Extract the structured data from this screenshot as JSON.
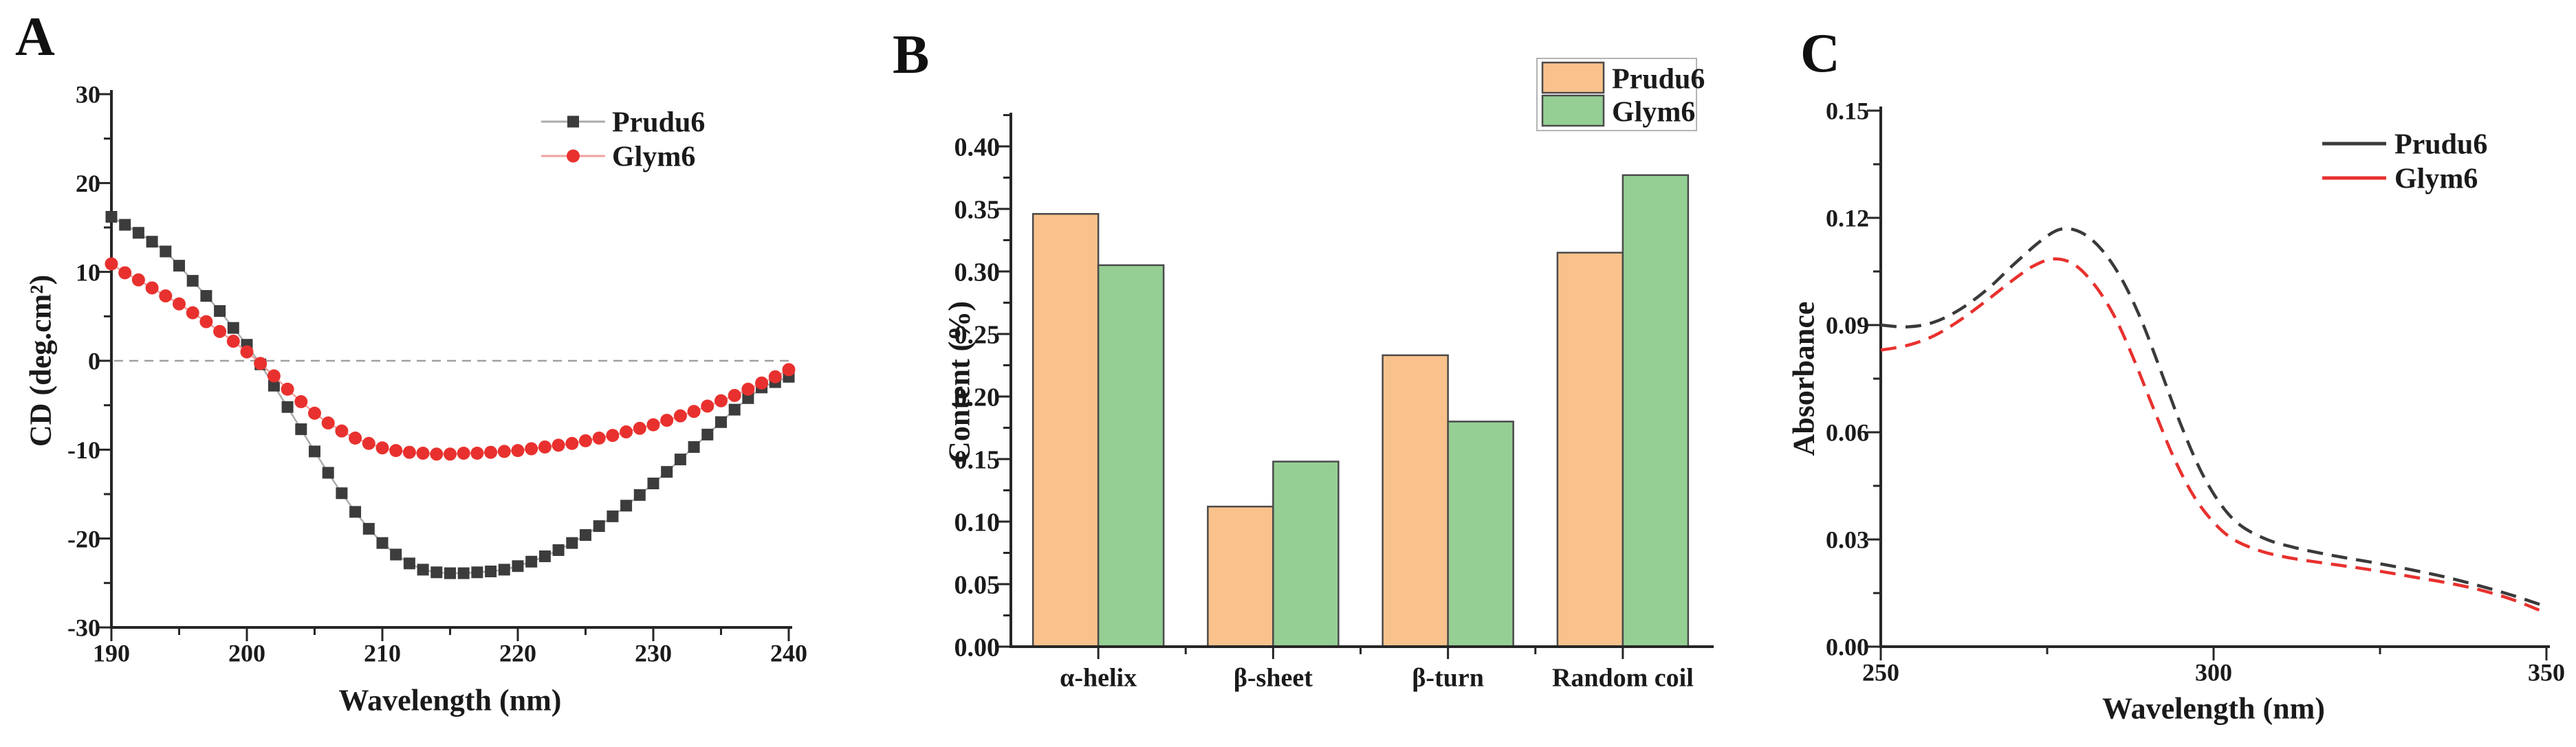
{
  "colors": {
    "text": "#1a1a1a",
    "axis": "#262626",
    "prudu6_marker": "#3c3c3c",
    "prudu6_line": "#ababab",
    "glym6_marker": "#e8312e",
    "glym6_line": "#f2a19e",
    "zero_line": "#a0a0a0",
    "bar_orange_fill": "#f9c28c",
    "bar_green_fill": "#95cf94",
    "bar_edge": "#4a4a4a",
    "dash_black": "#3a3a3a",
    "dash_red": "#e8312e",
    "legend_box_border": "#b4b4b4",
    "legend_box_fill": "#ffffff"
  },
  "chart_data": [
    {
      "id": "cd-spectra",
      "panel_label": "A",
      "type": "line",
      "title": "",
      "xlabel": "Wavelength (nm)",
      "ylabel": "CD (deg.cm²)",
      "xlim": [
        190,
        240
      ],
      "ylim": [
        -30,
        30
      ],
      "xticks": [
        190,
        200,
        210,
        220,
        230,
        240
      ],
      "xtick_labels": [
        "190",
        "200",
        "210",
        "220",
        "230",
        "240"
      ],
      "yticks": [
        30,
        20,
        10,
        0,
        -10,
        -20,
        -30
      ],
      "ytick_labels": [
        "30",
        "20",
        "10",
        "0",
        "-10",
        "-20",
        "-30"
      ],
      "minor_xticks": [
        195,
        205,
        215,
        225,
        235
      ],
      "minor_yticks": [
        25,
        15,
        5,
        -5,
        -15,
        -25
      ],
      "grid": false,
      "zero_line": true,
      "legend_position": "top-right-inside",
      "series": [
        {
          "name": "Prudu6",
          "marker": "square",
          "x_start": 190,
          "x_step": 1,
          "values": [
            16.2,
            15.3,
            14.4,
            13.4,
            12.3,
            10.7,
            9.0,
            7.3,
            5.6,
            3.7,
            1.8,
            -0.4,
            -2.8,
            -5.2,
            -7.7,
            -10.2,
            -12.6,
            -14.9,
            -17.0,
            -18.9,
            -20.5,
            -21.8,
            -22.8,
            -23.5,
            -23.8,
            -23.9,
            -23.9,
            -23.8,
            -23.7,
            -23.5,
            -23.1,
            -22.6,
            -22.0,
            -21.3,
            -20.5,
            -19.6,
            -18.6,
            -17.5,
            -16.3,
            -15.1,
            -13.8,
            -12.5,
            -11.1,
            -9.7,
            -8.3,
            -6.9,
            -5.5,
            -4.2,
            -3.0,
            -2.4,
            -1.8
          ]
        },
        {
          "name": "Glym6",
          "marker": "circle",
          "x_start": 190,
          "x_step": 1,
          "values": [
            10.9,
            9.9,
            9.1,
            8.2,
            7.3,
            6.4,
            5.4,
            4.4,
            3.3,
            2.2,
            1.0,
            -0.3,
            -1.7,
            -3.2,
            -4.6,
            -5.9,
            -7.0,
            -7.9,
            -8.7,
            -9.3,
            -9.8,
            -10.1,
            -10.3,
            -10.4,
            -10.5,
            -10.5,
            -10.4,
            -10.4,
            -10.3,
            -10.2,
            -10.1,
            -9.9,
            -9.7,
            -9.5,
            -9.3,
            -9.0,
            -8.7,
            -8.4,
            -8.0,
            -7.6,
            -7.2,
            -6.7,
            -6.2,
            -5.7,
            -5.1,
            -4.5,
            -3.9,
            -3.2,
            -2.5,
            -1.8,
            -1.0
          ]
        }
      ]
    },
    {
      "id": "secondary-structure-content",
      "panel_label": "B",
      "type": "bar",
      "title": "",
      "xlabel": "",
      "ylabel": "Content (%)",
      "categories": [
        "α-helix",
        "β-sheet",
        "β-turn",
        "Random coil"
      ],
      "ylim": [
        0,
        0.4236
      ],
      "yticks": [
        0.0,
        0.05,
        0.1,
        0.15,
        0.2,
        0.25,
        0.3,
        0.35,
        0.4
      ],
      "ytick_labels": [
        "0.00",
        "0.05",
        "0.10",
        "0.15",
        "0.20",
        "0.25",
        "0.30",
        "0.35",
        "0.40"
      ],
      "minor_ytick_step": 0.025,
      "grid": false,
      "legend_position": "top-right",
      "series": [
        {
          "name": "Prudu6",
          "values": [
            0.346,
            0.112,
            0.233,
            0.315
          ]
        },
        {
          "name": "Glym6",
          "values": [
            0.305,
            0.148,
            0.18,
            0.377
          ]
        }
      ]
    },
    {
      "id": "uv-absorbance",
      "panel_label": "C",
      "type": "line",
      "title": "",
      "xlabel": "Wavelength (nm)",
      "ylabel": "Absorbance",
      "xlim": [
        250,
        350
      ],
      "ylim": [
        0,
        0.15
      ],
      "xticks": [
        250,
        300,
        350
      ],
      "xtick_labels": [
        "250",
        "300",
        "350"
      ],
      "yticks": [
        0.0,
        0.03,
        0.06,
        0.09,
        0.12,
        0.15
      ],
      "ytick_labels": [
        "0.00",
        "0.03",
        "0.06",
        "0.09",
        "0.12",
        "0.15"
      ],
      "minor_xticks": [
        275,
        325
      ],
      "minor_yticks": [
        0.015,
        0.045,
        0.075,
        0.105,
        0.135
      ],
      "grid": false,
      "line_style": "dashed",
      "legend_position": "top-right-inside",
      "series": [
        {
          "name": "Prudu6",
          "dashed": true,
          "smooth": true,
          "points": [
            [
              250,
              0.09
            ],
            [
              254,
              0.0895
            ],
            [
              258,
              0.0908
            ],
            [
              262,
              0.0945
            ],
            [
              266,
              0.1
            ],
            [
              270,
              0.107
            ],
            [
              274,
              0.1135
            ],
            [
              277,
              0.1168
            ],
            [
              280,
              0.116
            ],
            [
              283,
              0.1115
            ],
            [
              286,
              0.1035
            ],
            [
              289,
              0.092
            ],
            [
              292,
              0.0775
            ],
            [
              295,
              0.0625
            ],
            [
              298,
              0.0495
            ],
            [
              301,
              0.04
            ],
            [
              304,
              0.034
            ],
            [
              308,
              0.03
            ],
            [
              312,
              0.0278
            ],
            [
              316,
              0.0262
            ],
            [
              320,
              0.0248
            ],
            [
              325,
              0.0232
            ],
            [
              330,
              0.0214
            ],
            [
              335,
              0.0194
            ],
            [
              340,
              0.017
            ],
            [
              345,
              0.0143
            ],
            [
              350,
              0.0112
            ]
          ]
        },
        {
          "name": "Glym6",
          "dashed": true,
          "smooth": true,
          "points": [
            [
              250,
              0.083
            ],
            [
              254,
              0.0843
            ],
            [
              258,
              0.087
            ],
            [
              262,
              0.0915
            ],
            [
              266,
              0.097
            ],
            [
              270,
              0.1028
            ],
            [
              273,
              0.1066
            ],
            [
              276,
              0.1085
            ],
            [
              279,
              0.107
            ],
            [
              282,
              0.1015
            ],
            [
              285,
              0.0928
            ],
            [
              288,
              0.0805
            ],
            [
              291,
              0.0665
            ],
            [
              294,
              0.053
            ],
            [
              297,
              0.0422
            ],
            [
              300,
              0.0348
            ],
            [
              303,
              0.03
            ],
            [
              307,
              0.0268
            ],
            [
              311,
              0.025
            ],
            [
              315,
              0.0238
            ],
            [
              320,
              0.0225
            ],
            [
              325,
              0.0211
            ],
            [
              330,
              0.0195
            ],
            [
              335,
              0.0179
            ],
            [
              340,
              0.0159
            ],
            [
              345,
              0.0131
            ],
            [
              350,
              0.0094
            ]
          ]
        }
      ]
    }
  ]
}
